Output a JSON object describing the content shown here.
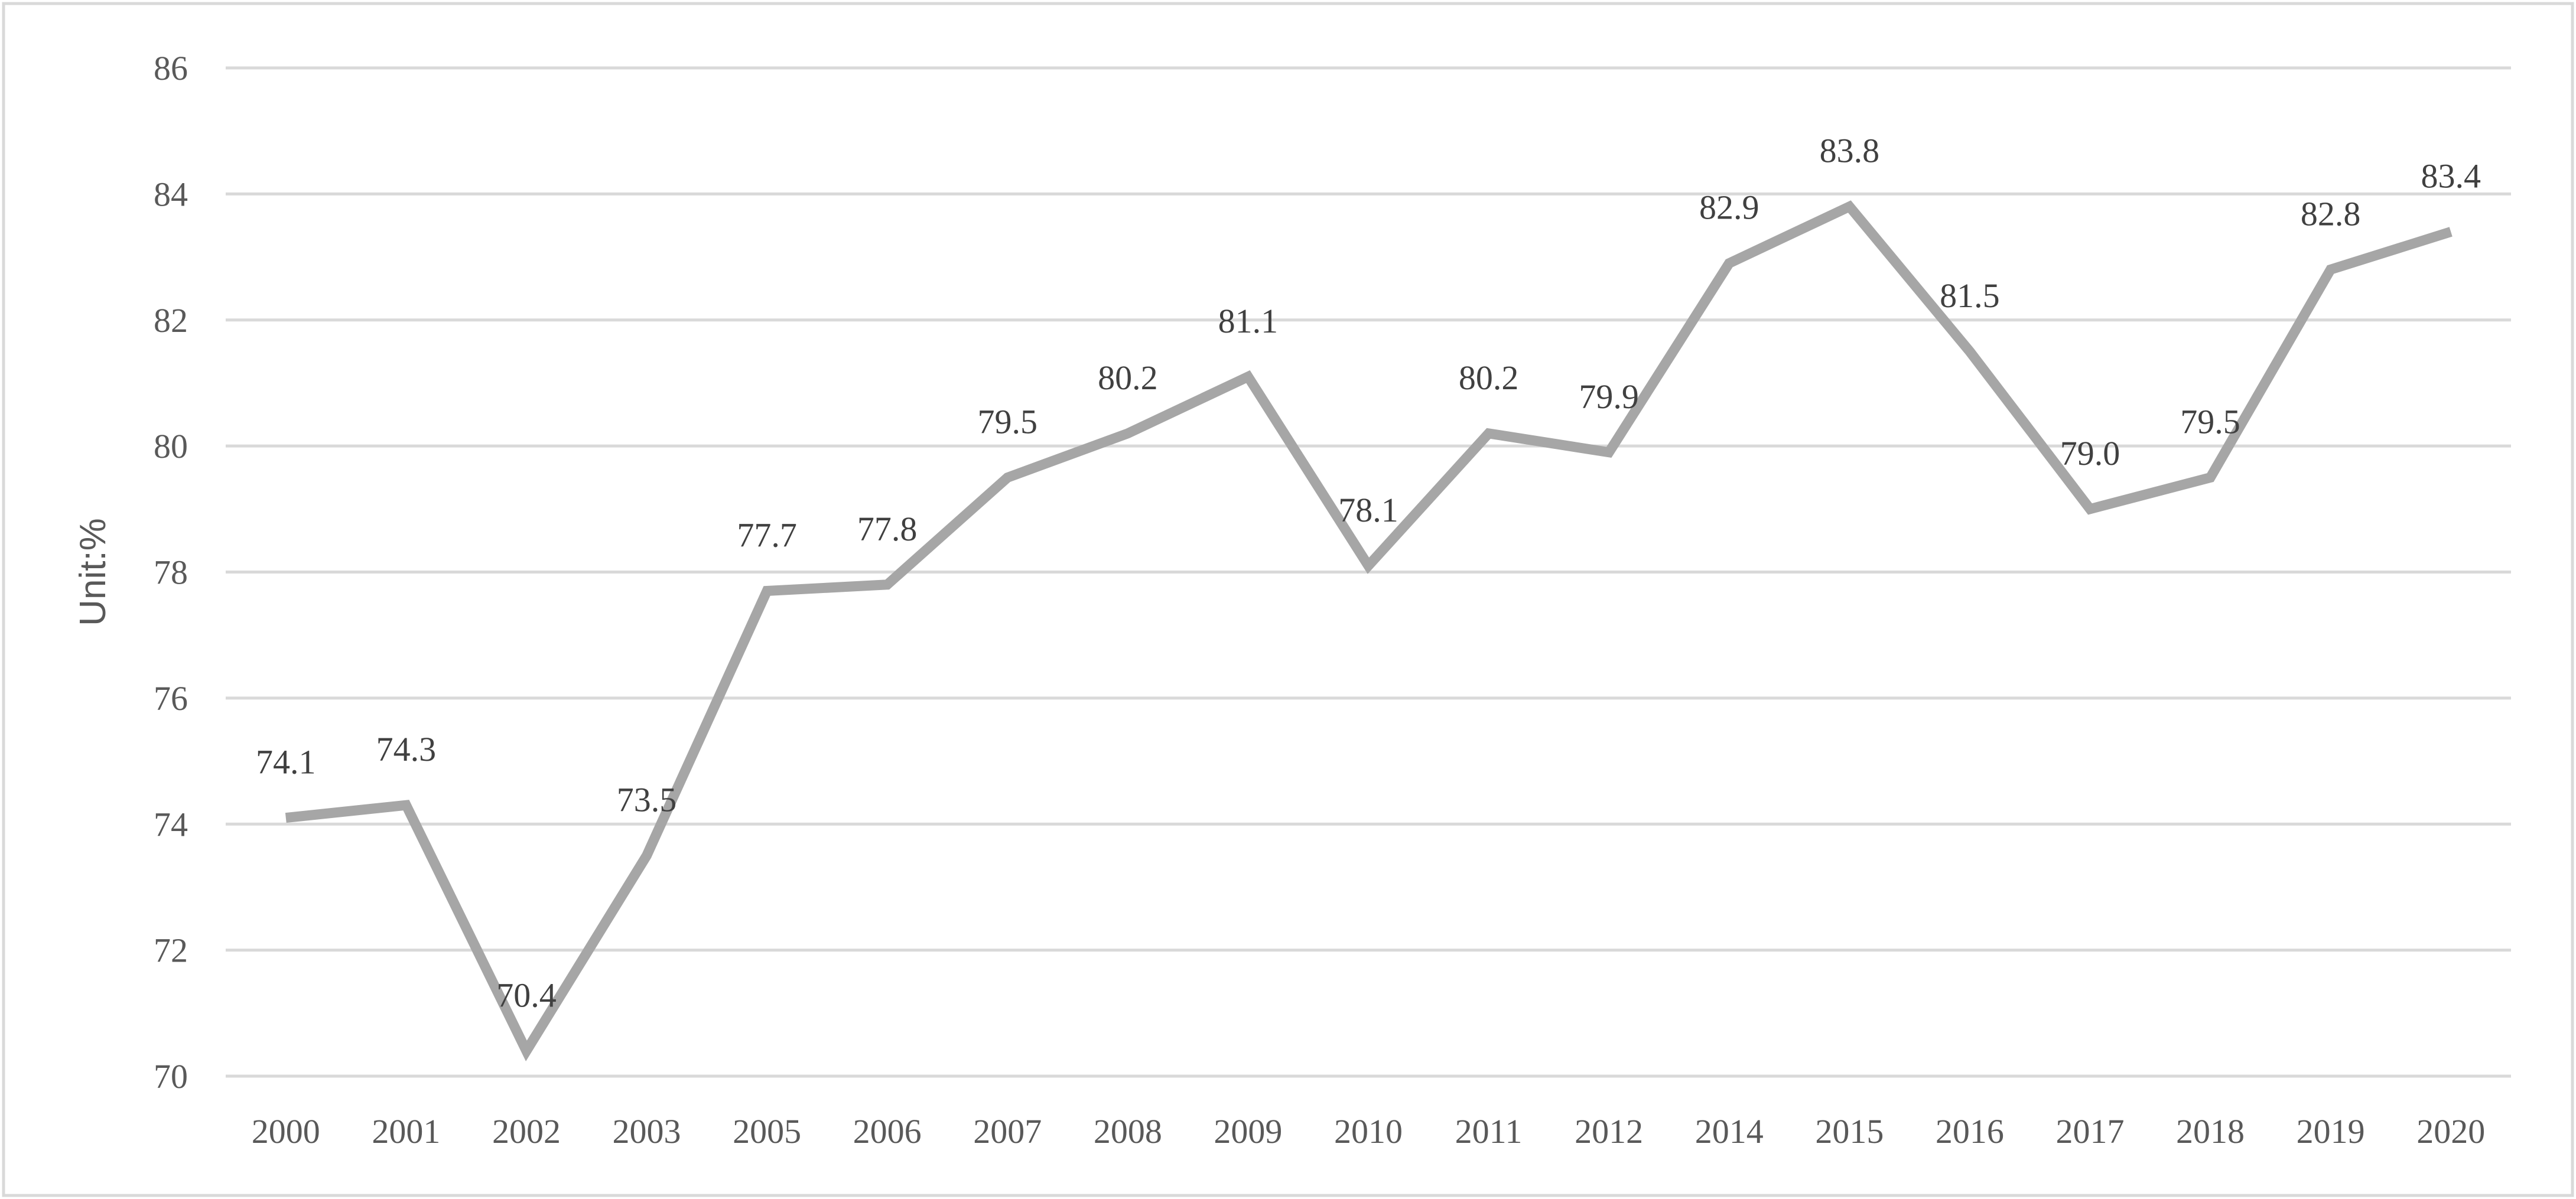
{
  "chart_data": {
    "type": "line",
    "title": "",
    "xlabel": "",
    "ylabel": "Unit:%",
    "ylim": [
      70,
      86
    ],
    "yticks": [
      70,
      72,
      74,
      76,
      78,
      80,
      82,
      84,
      86
    ],
    "grid": true,
    "legend": "none",
    "line_color": "#a6a6a6",
    "grid_color": "#d9d9d9",
    "categories": [
      "2000",
      "2001",
      "2002",
      "2003",
      "2005",
      "2006",
      "2007",
      "2008",
      "2009",
      "2010",
      "2011",
      "2012",
      "2014",
      "2015",
      "2016",
      "2017",
      "2018",
      "2019",
      "2020"
    ],
    "values": [
      74.1,
      74.3,
      70.4,
      73.5,
      77.7,
      77.8,
      79.5,
      80.2,
      81.1,
      78.1,
      80.2,
      79.9,
      82.9,
      83.8,
      81.5,
      79.0,
      79.5,
      82.8,
      83.4
    ],
    "data_labels": [
      "74.1",
      "74.3",
      "70.4",
      "73.5",
      "77.7",
      "77.8",
      "79.5",
      "80.2",
      "81.1",
      "78.1",
      "80.2",
      "79.9",
      "82.9",
      "83.8",
      "81.5",
      "79.0",
      "79.5",
      "82.8",
      "83.4"
    ]
  }
}
